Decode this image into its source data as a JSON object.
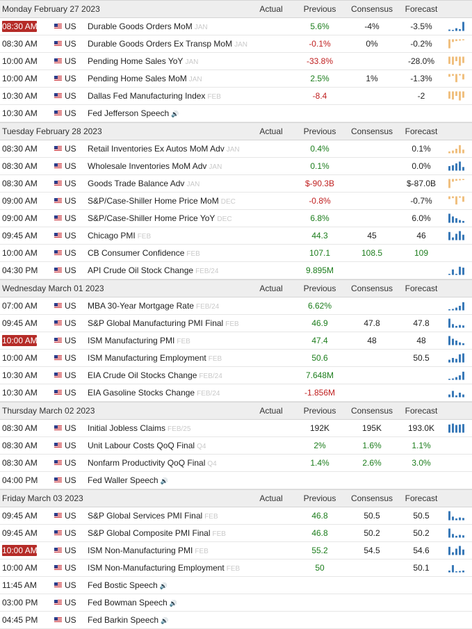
{
  "columns": {
    "actual": "Actual",
    "previous": "Previous",
    "consensus": "Consensus",
    "forecast": "Forecast"
  },
  "colors": {
    "positive": "#1c7d1c",
    "negative": "#c02020",
    "highlight": "#b52b27",
    "spark_positive": "#3a7ab8",
    "spark_negative": "#f0c080"
  },
  "days": [
    {
      "date": "Monday February 27 2023",
      "events": [
        {
          "time": "08:30 AM",
          "hl": true,
          "country": "US",
          "name": "Durable Goods Orders MoM",
          "period": "JAN",
          "previous": "5.6%",
          "pc": "pos",
          "consensus": "-4%",
          "forecast": "-3.5%",
          "spark": "mix1"
        },
        {
          "time": "08:30 AM",
          "country": "US",
          "name": "Durable Goods Orders Ex Transp MoM",
          "period": "JAN",
          "previous": "-0.1%",
          "pc": "neg",
          "consensus": "0%",
          "forecast": "-0.2%",
          "spark": "neg1"
        },
        {
          "time": "10:00 AM",
          "country": "US",
          "name": "Pending Home Sales YoY",
          "period": "JAN",
          "previous": "-33.8%",
          "pc": "neg",
          "forecast": "-28.0%",
          "spark": "neg2"
        },
        {
          "time": "10:00 AM",
          "country": "US",
          "name": "Pending Home Sales MoM",
          "period": "JAN",
          "previous": "2.5%",
          "pc": "pos",
          "consensus": "1%",
          "forecast": "-1.3%",
          "spark": "neg3"
        },
        {
          "time": "10:30 AM",
          "country": "US",
          "name": "Dallas Fed Manufacturing Index",
          "period": "FEB",
          "previous": "-8.4",
          "pc": "neg",
          "forecast": "-2",
          "spark": "neg2"
        },
        {
          "time": "10:30 AM",
          "country": "US",
          "name": "Fed Jefferson Speech",
          "speech": true
        }
      ]
    },
    {
      "date": "Tuesday February 28 2023",
      "events": [
        {
          "time": "08:30 AM",
          "country": "US",
          "name": "Retail Inventories Ex Autos MoM Adv",
          "period": "JAN",
          "previous": "0.4%",
          "pc": "pos",
          "forecast": "0.1%",
          "spark": "mix2"
        },
        {
          "time": "08:30 AM",
          "country": "US",
          "name": "Wholesale Inventories MoM Adv",
          "period": "JAN",
          "previous": "0.1%",
          "pc": "pos",
          "forecast": "0.0%",
          "spark": "pos1"
        },
        {
          "time": "08:30 AM",
          "country": "US",
          "name": "Goods Trade Balance Adv",
          "period": "JAN",
          "previous": "$-90.3B",
          "pc": "neg",
          "forecast": "$-87.0B",
          "spark": "neg1"
        },
        {
          "time": "09:00 AM",
          "country": "US",
          "name": "S&P/Case-Shiller Home Price MoM",
          "period": "DEC",
          "previous": "-0.8%",
          "pc": "neg",
          "forecast": "-0.7%",
          "spark": "neg3"
        },
        {
          "time": "09:00 AM",
          "country": "US",
          "name": "S&P/Case-Shiller Home Price YoY",
          "period": "DEC",
          "previous": "6.8%",
          "pc": "pos",
          "forecast": "6.0%",
          "spark": "pos2"
        },
        {
          "time": "09:45 AM",
          "country": "US",
          "name": "Chicago PMI",
          "period": "FEB",
          "previous": "44.3",
          "pc": "pos",
          "consensus": "45",
          "forecast": "46",
          "spark": "pos3"
        },
        {
          "time": "10:00 AM",
          "country": "US",
          "name": "CB Consumer Confidence",
          "period": "FEB",
          "previous": "107.1",
          "pc": "pos",
          "consensus": "108.5",
          "cc": "pos",
          "forecast": "109",
          "fc": "pos"
        },
        {
          "time": "04:30 PM",
          "country": "US",
          "name": "API Crude Oil Stock Change",
          "period": "FEB/24",
          "previous": "9.895M",
          "pc": "pos",
          "spark": "pos4"
        }
      ]
    },
    {
      "date": "Wednesday March 01 2023",
      "events": [
        {
          "time": "07:00 AM",
          "country": "US",
          "name": "MBA 30-Year Mortgage Rate",
          "period": "FEB/24",
          "previous": "6.62%",
          "pc": "pos",
          "spark": "pos5"
        },
        {
          "time": "09:45 AM",
          "country": "US",
          "name": "S&P Global Manufacturing PMI Final",
          "period": "FEB",
          "previous": "46.9",
          "pc": "pos",
          "consensus": "47.8",
          "forecast": "47.8",
          "spark": "pos6"
        },
        {
          "time": "10:00 AM",
          "hl": true,
          "country": "US",
          "name": "ISM Manufacturing PMI",
          "period": "FEB",
          "previous": "47.4",
          "pc": "pos",
          "consensus": "48",
          "forecast": "48",
          "spark": "pos2"
        },
        {
          "time": "10:00 AM",
          "country": "US",
          "name": "ISM Manufacturing Employment",
          "period": "FEB",
          "previous": "50.6",
          "pc": "pos",
          "forecast": "50.5",
          "spark": "pos7"
        },
        {
          "time": "10:30 AM",
          "country": "US",
          "name": "EIA Crude Oil Stocks Change",
          "period": "FEB/24",
          "previous": "7.648M",
          "pc": "pos",
          "spark": "pos5"
        },
        {
          "time": "10:30 AM",
          "country": "US",
          "name": "EIA Gasoline Stocks Change",
          "period": "FEB/24",
          "previous": "-1.856M",
          "pc": "neg",
          "spark": "pos8"
        }
      ]
    },
    {
      "date": "Thursday March 02 2023",
      "events": [
        {
          "time": "08:30 AM",
          "country": "US",
          "name": "Initial Jobless Claims",
          "period": "FEB/25",
          "previous": "192K",
          "pc": "neu",
          "consensus": "195K",
          "forecast": "193.0K",
          "spark": "pos9"
        },
        {
          "time": "08:30 AM",
          "country": "US",
          "name": "Unit Labour Costs QoQ Final",
          "period": "Q4",
          "previous": "2%",
          "pc": "pos",
          "consensus": "1.6%",
          "cc": "pos",
          "forecast": "1.1%",
          "fc": "pos"
        },
        {
          "time": "08:30 AM",
          "country": "US",
          "name": "Nonfarm Productivity QoQ Final",
          "period": "Q4",
          "previous": "1.4%",
          "pc": "pos",
          "consensus": "2.6%",
          "cc": "pos",
          "forecast": "3.0%",
          "fc": "pos"
        },
        {
          "time": "04:00 PM",
          "country": "US",
          "name": "Fed Waller Speech",
          "speech": true
        }
      ]
    },
    {
      "date": "Friday March 03 2023",
      "events": [
        {
          "time": "09:45 AM",
          "country": "US",
          "name": "S&P Global Services PMI Final",
          "period": "FEB",
          "previous": "46.8",
          "pc": "pos",
          "consensus": "50.5",
          "forecast": "50.5",
          "spark": "pos6"
        },
        {
          "time": "09:45 AM",
          "country": "US",
          "name": "S&P Global Composite PMI Final",
          "period": "FEB",
          "previous": "46.8",
          "pc": "pos",
          "consensus": "50.2",
          "forecast": "50.2",
          "spark": "pos6"
        },
        {
          "time": "10:00 AM",
          "hl": true,
          "country": "US",
          "name": "ISM Non-Manufacturing PMI",
          "period": "FEB",
          "previous": "55.2",
          "pc": "pos",
          "consensus": "54.5",
          "forecast": "54.6",
          "spark": "pos3"
        },
        {
          "time": "10:00 AM",
          "country": "US",
          "name": "ISM Non-Manufacturing Employment",
          "period": "FEB",
          "previous": "50",
          "pc": "pos",
          "forecast": "50.1",
          "spark": "pos10"
        },
        {
          "time": "11:45 AM",
          "country": "US",
          "name": "Fed Bostic Speech",
          "speech": true
        },
        {
          "time": "03:00 PM",
          "country": "US",
          "name": "Fed Bowman Speech",
          "speech": true
        },
        {
          "time": "04:45 PM",
          "country": "US",
          "name": "Fed Barkin Speech",
          "speech": true
        }
      ]
    }
  ]
}
